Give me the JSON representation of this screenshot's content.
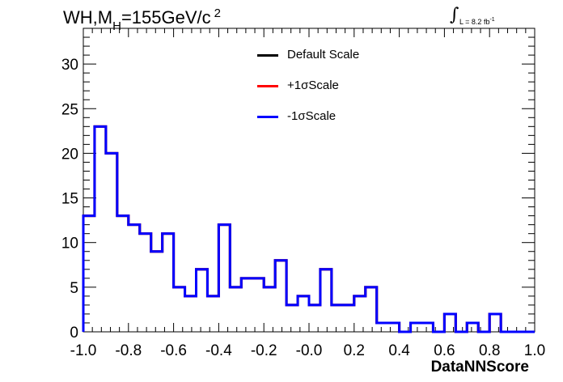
{
  "title": {
    "prefix": "WH,M",
    "subscript": "H",
    "main": "=155GeV/c",
    "superscript": "2"
  },
  "lumi": {
    "integral": "∫",
    "text": "L = 8.2 fb",
    "superscript": "-1"
  },
  "chart_data": {
    "type": "line",
    "style": "step-histogram",
    "xlabel": "DataNNScore",
    "ylabel": "",
    "xlim": [
      -1.0,
      1.0
    ],
    "ylim": [
      0,
      34
    ],
    "x_ticks": [
      "-1.0",
      "-0.8",
      "-0.6",
      "-0.4",
      "-0.2",
      "-0.0",
      "0.2",
      "0.4",
      "0.6",
      "0.8",
      "1.0"
    ],
    "y_ticks": [
      "0",
      "5",
      "10",
      "15",
      "20",
      "25",
      "30"
    ],
    "bin_edges": [
      -1.0,
      -0.95,
      -0.9,
      -0.85,
      -0.8,
      -0.75,
      -0.7,
      -0.65,
      -0.6,
      -0.55,
      -0.5,
      -0.45,
      -0.4,
      -0.35,
      -0.3,
      -0.25,
      -0.2,
      -0.15,
      -0.1,
      -0.05,
      0.0,
      0.05,
      0.1,
      0.15,
      0.2,
      0.25,
      0.3,
      0.35,
      0.4,
      0.45,
      0.5,
      0.55,
      0.6,
      0.65,
      0.7,
      0.75,
      0.8,
      0.85,
      0.9,
      0.95,
      1.0
    ],
    "series": [
      {
        "name": "Default Scale",
        "color": "#000000",
        "values": [
          13,
          23,
          20,
          13,
          12,
          11,
          9,
          11,
          5,
          4,
          7,
          4,
          12,
          5,
          6,
          6,
          5,
          8,
          3,
          4,
          3,
          7,
          3,
          3,
          4,
          5,
          1,
          1,
          0,
          1,
          1,
          0,
          2,
          0,
          1,
          0,
          2,
          0,
          0,
          0
        ]
      },
      {
        "name": "+1σScale",
        "color": "#ff0000",
        "values": [
          13,
          23,
          20,
          13,
          12,
          11,
          9,
          11,
          5,
          4,
          7,
          4,
          12,
          5,
          6,
          6,
          5,
          8,
          3,
          4,
          3,
          7,
          3,
          3,
          4,
          5,
          1,
          1,
          0,
          1,
          1,
          0,
          2,
          0,
          1,
          0,
          2,
          0,
          0,
          0
        ]
      },
      {
        "name": "-1σScale",
        "color": "#0000ff",
        "values": [
          13,
          23,
          20,
          13,
          12,
          11,
          9,
          11,
          5,
          4,
          7,
          4,
          12,
          5,
          6,
          6,
          5,
          8,
          3,
          4,
          3,
          7,
          3,
          3,
          4,
          5,
          1,
          1,
          0,
          1,
          1,
          0,
          2,
          0,
          1,
          0,
          2,
          0,
          0,
          0
        ]
      }
    ],
    "legend_position": "top-center",
    "grid": false
  }
}
